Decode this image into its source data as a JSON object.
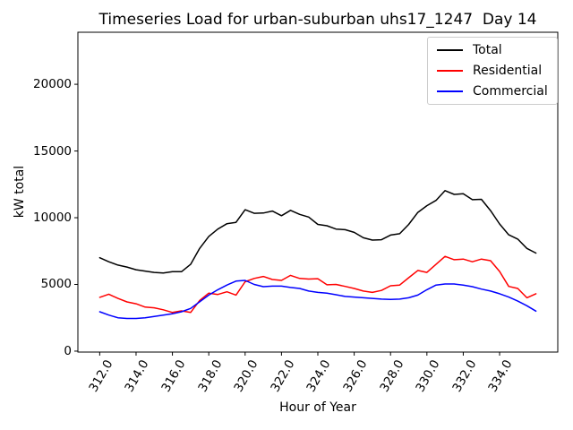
{
  "chart_data": {
    "type": "line",
    "title": "Timeseries Load for urban-suburban uhs17_1247  Day 14",
    "xlabel": "Hour of Year",
    "ylabel": "kW total",
    "grid": false,
    "legend_position": "upper right",
    "xlim": [
      310.8,
      337.2
    ],
    "ylim": [
      -70,
      23900
    ],
    "xticks": [
      312,
      314,
      316,
      318,
      320,
      322,
      324,
      326,
      328,
      330,
      332,
      334
    ],
    "xtick_labels": [
      "312.0",
      "314.0",
      "316.0",
      "318.0",
      "320.0",
      "322.0",
      "324.0",
      "326.0",
      "328.0",
      "330.0",
      "332.0",
      "334.0"
    ],
    "yticks": [
      0,
      5000,
      10000,
      15000,
      20000
    ],
    "ytick_labels": [
      "0",
      "5000",
      "10000",
      "15000",
      "20000"
    ],
    "x": [
      312,
      312.5,
      313,
      313.5,
      314,
      314.5,
      315,
      315.5,
      316,
      316.5,
      317,
      317.5,
      318,
      318.5,
      319,
      319.5,
      320,
      320.5,
      321,
      321.5,
      322,
      322.5,
      323,
      323.5,
      324,
      324.5,
      325,
      325.5,
      326,
      326.5,
      327,
      327.5,
      328,
      328.5,
      329,
      329.5,
      330,
      330.5,
      331,
      331.5,
      332,
      332.5,
      333,
      333.5,
      334,
      334.5,
      335,
      335.5,
      336
    ],
    "series": [
      {
        "name": "Total",
        "color": "#000000",
        "values": [
          7000,
          6700,
          6450,
          6300,
          6100,
          6000,
          5900,
          5850,
          5950,
          5950,
          6500,
          7700,
          8600,
          9150,
          9550,
          9650,
          10600,
          10330,
          10350,
          10500,
          10150,
          10550,
          10250,
          10050,
          9500,
          9400,
          9150,
          9100,
          8900,
          8500,
          8320,
          8350,
          8700,
          8800,
          9500,
          10400,
          10900,
          11300,
          12030,
          11750,
          11800,
          11350,
          11380,
          10530,
          9530,
          8720,
          8400,
          7700,
          7350
        ]
      },
      {
        "name": "Residential",
        "color": "#ff0000",
        "values": [
          4030,
          4270,
          3950,
          3690,
          3550,
          3300,
          3250,
          3100,
          2900,
          3020,
          2900,
          3800,
          4350,
          4250,
          4450,
          4200,
          5200,
          5450,
          5600,
          5370,
          5300,
          5680,
          5450,
          5400,
          5430,
          4970,
          5000,
          4850,
          4700,
          4500,
          4400,
          4550,
          4900,
          4950,
          5500,
          6050,
          5900,
          6500,
          7100,
          6850,
          6900,
          6700,
          6900,
          6780,
          5970,
          4850,
          4700,
          4000,
          4300
        ]
      },
      {
        "name": "Commercial",
        "color": "#0000ff",
        "values": [
          2950,
          2700,
          2500,
          2450,
          2450,
          2500,
          2600,
          2700,
          2800,
          2950,
          3200,
          3700,
          4200,
          4600,
          4950,
          5250,
          5300,
          5000,
          4830,
          4870,
          4870,
          4770,
          4700,
          4500,
          4400,
          4350,
          4230,
          4100,
          4050,
          4000,
          3950,
          3900,
          3870,
          3900,
          4000,
          4200,
          4600,
          4950,
          5030,
          5030,
          4950,
          4830,
          4650,
          4500,
          4300,
          4050,
          3750,
          3400,
          3000
        ]
      }
    ]
  }
}
